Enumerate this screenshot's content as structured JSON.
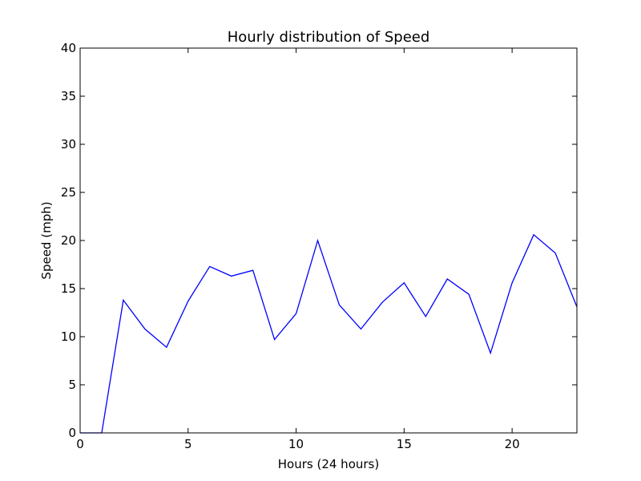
{
  "chart_data": {
    "type": "line",
    "title": "Hourly distribution of Speed",
    "xlabel": "Hours (24 hours)",
    "ylabel": "Speed (mph)",
    "xlim": [
      0,
      23
    ],
    "ylim": [
      0,
      40
    ],
    "x_ticks": [
      0,
      5,
      10,
      15,
      20
    ],
    "y_ticks": [
      0,
      5,
      10,
      15,
      20,
      25,
      30,
      35,
      40
    ],
    "grid": false,
    "line_color": "#0000ff",
    "series": [
      {
        "x": [
          0,
          1,
          2,
          3,
          4,
          5,
          6,
          7,
          8,
          9,
          10,
          11,
          12,
          13,
          14,
          15,
          16,
          17,
          18,
          19,
          20,
          21,
          22,
          23
        ],
        "values": [
          0,
          0,
          13.8,
          10.8,
          8.9,
          13.7,
          17.3,
          16.3,
          16.9,
          9.7,
          12.4,
          20.0,
          13.3,
          10.8,
          13.6,
          15.6,
          12.1,
          16.0,
          14.4,
          8.3,
          15.6,
          20.6,
          18.7,
          13.1
        ]
      }
    ]
  }
}
